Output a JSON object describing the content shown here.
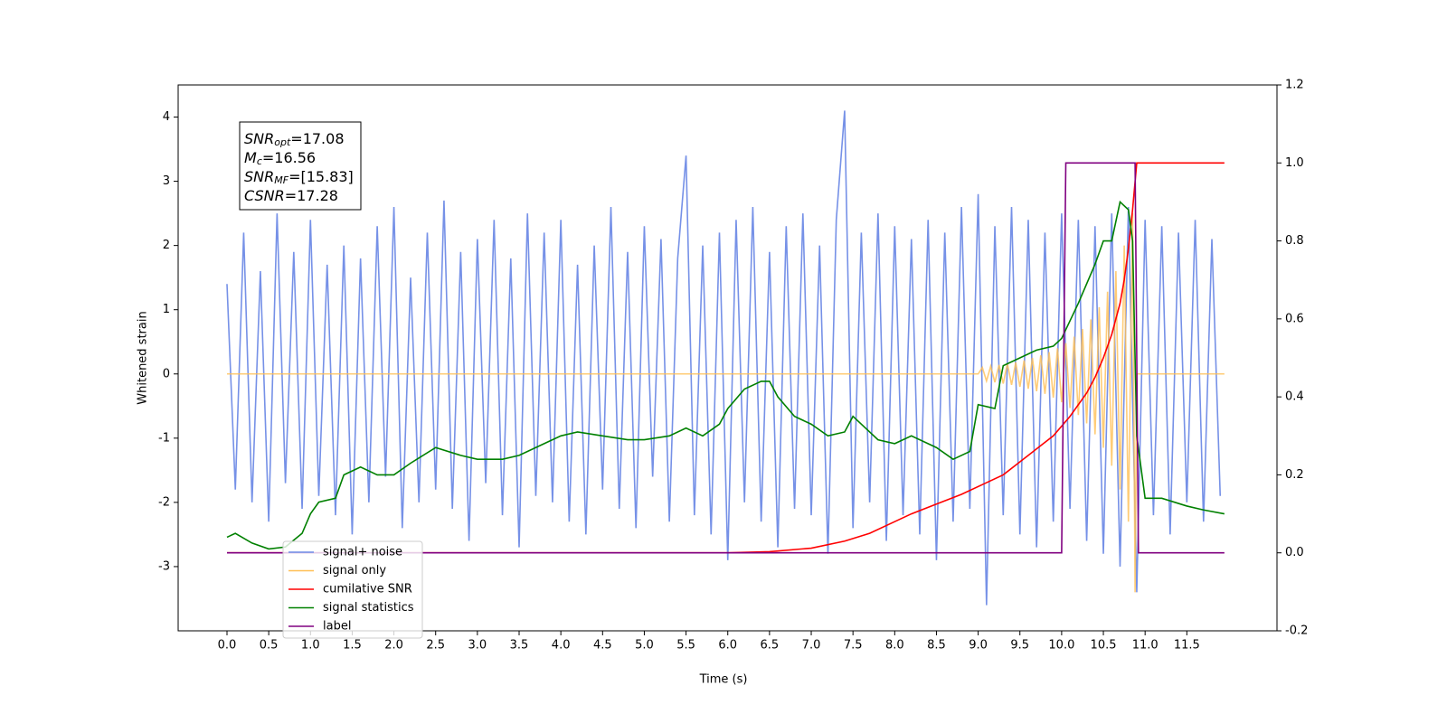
{
  "chart_data": {
    "type": "line",
    "x_label": "Time (s)",
    "y_label": "Whitened strain",
    "annotation": [
      {
        "base": "SNR",
        "sub": "opt",
        "rest": "=17.08"
      },
      {
        "base": "M",
        "sub": "c",
        "rest": "=16.56"
      },
      {
        "base": "SNR",
        "sub": "MF",
        "rest": "=[15.83]"
      },
      {
        "base": "CSNR",
        "sub": null,
        "rest": "=17.28"
      }
    ],
    "xlim": [
      -0.585,
      12.58
    ],
    "xticks": [
      {
        "value": 0,
        "label": "0.0"
      },
      0.5,
      {
        "value": 1,
        "label": "1.0"
      },
      1.5,
      {
        "value": 2,
        "label": "2.0"
      },
      2.5,
      {
        "value": 3,
        "label": "3.0"
      },
      3.5,
      {
        "value": 4,
        "label": "4.0"
      },
      4.5,
      {
        "value": 5,
        "label": "5.0"
      },
      5.5,
      {
        "value": 6,
        "label": "6.0"
      },
      6.5,
      {
        "value": 7,
        "label": "7.0"
      },
      7.5,
      {
        "value": 8,
        "label": "8.0"
      },
      8.5,
      {
        "value": 9,
        "label": "9.0"
      },
      9.5,
      {
        "value": 10,
        "label": "10.0"
      },
      10.5,
      {
        "value": 11,
        "label": "11.0"
      },
      11.5
    ],
    "ylim": [
      -4.0,
      4.5
    ],
    "yticks": [
      -3,
      -2,
      -1,
      0,
      1,
      2,
      3,
      4
    ],
    "y2lim": [
      -0.2,
      1.2
    ],
    "y2ticks": [
      -0.2,
      {
        "value": 0,
        "label": "0.0"
      },
      0.2,
      0.4,
      0.6,
      0.8,
      {
        "value": 1,
        "label": "1.0"
      },
      1.2
    ],
    "legend": "lower left",
    "series": [
      {
        "name": "signal+ noise",
        "color": "#6f8be6",
        "x": [
          0,
          0.1,
          0.2,
          0.3,
          0.4,
          0.5,
          0.6,
          0.7,
          0.8,
          0.9,
          1,
          1.1,
          1.2,
          1.3,
          1.4,
          1.5,
          1.6,
          1.7,
          1.8,
          1.9,
          2,
          2.1,
          2.2,
          2.3,
          2.4,
          2.5,
          2.6,
          2.7,
          2.8,
          2.9,
          3,
          3.1,
          3.2,
          3.3,
          3.4,
          3.5,
          3.6,
          3.7,
          3.8,
          3.9,
          4,
          4.1,
          4.2,
          4.3,
          4.4,
          4.5,
          4.6,
          4.7,
          4.8,
          4.9,
          5,
          5.1,
          5.2,
          5.3,
          5.4,
          5.5,
          5.6,
          5.7,
          5.8,
          5.9,
          6,
          6.1,
          6.2,
          6.3,
          6.4,
          6.5,
          6.6,
          6.7,
          6.8,
          6.9,
          7,
          7.1,
          7.2,
          7.3,
          7.4,
          7.5,
          7.6,
          7.7,
          7.8,
          7.9,
          8,
          8.1,
          8.2,
          8.3,
          8.4,
          8.5,
          8.6,
          8.7,
          8.8,
          8.9,
          9,
          9.1,
          9.2,
          9.3,
          9.4,
          9.5,
          9.6,
          9.7,
          9.8,
          9.9,
          10,
          10.1,
          10.2,
          10.3,
          10.4,
          10.5,
          10.6,
          10.7,
          10.8,
          10.9,
          11,
          11.1,
          11.2,
          11.3,
          11.4,
          11.5,
          11.6,
          11.7,
          11.8,
          11.9
        ],
        "values": [
          1.4,
          -1.8,
          2.2,
          -2.0,
          1.6,
          -2.3,
          2.5,
          -1.7,
          1.9,
          -2.1,
          2.4,
          -1.9,
          1.7,
          -2.2,
          2.0,
          -2.5,
          1.8,
          -2.0,
          2.3,
          -1.6,
          2.6,
          -2.4,
          1.5,
          -2.0,
          2.2,
          -1.8,
          2.7,
          -2.1,
          1.9,
          -2.6,
          2.1,
          -1.7,
          2.4,
          -2.2,
          1.8,
          -2.7,
          2.5,
          -1.9,
          2.2,
          -2.0,
          2.4,
          -2.3,
          1.7,
          -2.5,
          2.0,
          -1.8,
          2.6,
          -2.1,
          1.9,
          -2.4,
          2.3,
          -1.6,
          2.1,
          -2.3,
          1.8,
          3.4,
          -2.2,
          2.0,
          -2.5,
          2.2,
          -2.9,
          2.4,
          -2.0,
          2.6,
          -2.3,
          1.9,
          -2.7,
          2.3,
          -2.1,
          2.5,
          -2.2,
          2.0,
          -2.8,
          2.4,
          4.1,
          -2.4,
          2.2,
          -2.0,
          2.5,
          -2.6,
          2.3,
          -2.2,
          2.1,
          -2.5,
          2.4,
          -2.9,
          2.2,
          -2.3,
          2.6,
          -2.1,
          2.8,
          -3.6,
          2.3,
          -2.2,
          2.6,
          -2.5,
          2.4,
          -2.7,
          2.2,
          -2.3,
          2.5,
          -2.1,
          2.4,
          -2.6,
          2.3,
          -2.8,
          2.5,
          -3.0,
          2.6,
          -3.4,
          2.4,
          -2.2,
          2.3,
          -2.5,
          2.2,
          -2.0,
          2.4,
          -2.3,
          2.1,
          -1.9
        ]
      },
      {
        "name": "signal only",
        "color": "#ffbf55",
        "x": [
          0,
          9.0,
          9.05,
          9.1,
          9.15,
          9.2,
          9.25,
          9.3,
          9.35,
          9.4,
          9.45,
          9.5,
          9.55,
          9.6,
          9.65,
          9.7,
          9.75,
          9.8,
          9.85,
          9.9,
          9.95,
          10.0,
          10.05,
          10.1,
          10.15,
          10.2,
          10.25,
          10.3,
          10.35,
          10.4,
          10.45,
          10.5,
          10.55,
          10.6,
          10.65,
          10.7,
          10.75,
          10.8,
          10.85,
          10.88,
          10.9,
          11.95
        ],
        "values": [
          0,
          0,
          0.1,
          -0.11,
          0.12,
          -0.13,
          0.14,
          -0.15,
          0.16,
          -0.17,
          0.18,
          -0.2,
          0.21,
          -0.23,
          0.25,
          -0.27,
          0.29,
          -0.31,
          0.34,
          -0.37,
          0.4,
          -0.44,
          0.48,
          -0.53,
          0.58,
          -0.64,
          0.7,
          -0.77,
          0.85,
          -0.94,
          1.04,
          -1.15,
          1.28,
          -1.43,
          1.6,
          -1.8,
          2.0,
          -2.3,
          2.5,
          -3.4,
          0,
          0
        ]
      },
      {
        "name": "cumilative SNR",
        "color": "#ff0000",
        "axis": "y2",
        "x": [
          0,
          6.0,
          6.5,
          7.0,
          7.4,
          7.7,
          8.0,
          8.2,
          8.5,
          8.8,
          9.1,
          9.3,
          9.6,
          9.9,
          10.1,
          10.3,
          10.4,
          10.5,
          10.6,
          10.7,
          10.75,
          10.8,
          10.85,
          10.9,
          11.95
        ],
        "values": [
          0,
          0,
          0.003,
          0.012,
          0.03,
          0.05,
          0.08,
          0.1,
          0.125,
          0.15,
          0.18,
          0.2,
          0.25,
          0.3,
          0.35,
          0.41,
          0.45,
          0.5,
          0.56,
          0.64,
          0.7,
          0.78,
          0.88,
          1.0,
          1.0
        ]
      },
      {
        "name": "signal statistics",
        "color": "#008000",
        "axis": "y2",
        "x": [
          0,
          0.1,
          0.3,
          0.5,
          0.7,
          0.9,
          1.0,
          1.1,
          1.3,
          1.4,
          1.6,
          1.8,
          2.0,
          2.2,
          2.5,
          2.8,
          3.0,
          3.3,
          3.5,
          3.8,
          4.0,
          4.2,
          4.5,
          4.8,
          5.0,
          5.3,
          5.5,
          5.7,
          5.9,
          6.0,
          6.2,
          6.4,
          6.5,
          6.6,
          6.8,
          7.0,
          7.2,
          7.4,
          7.5,
          7.6,
          7.8,
          8.0,
          8.2,
          8.5,
          8.7,
          8.9,
          9.0,
          9.2,
          9.3,
          9.5,
          9.7,
          9.9,
          10.0,
          10.2,
          10.4,
          10.5,
          10.6,
          10.7,
          10.8,
          10.85,
          10.9,
          11.0,
          11.2,
          11.5,
          11.7,
          11.95
        ],
        "values": [
          0.04,
          0.05,
          0.025,
          0.01,
          0.015,
          0.05,
          0.1,
          0.13,
          0.14,
          0.2,
          0.22,
          0.2,
          0.2,
          0.23,
          0.27,
          0.25,
          0.24,
          0.24,
          0.25,
          0.28,
          0.3,
          0.31,
          0.3,
          0.29,
          0.29,
          0.3,
          0.32,
          0.3,
          0.33,
          0.37,
          0.42,
          0.44,
          0.44,
          0.4,
          0.35,
          0.33,
          0.3,
          0.31,
          0.35,
          0.33,
          0.29,
          0.28,
          0.3,
          0.27,
          0.24,
          0.26,
          0.38,
          0.37,
          0.48,
          0.5,
          0.52,
          0.53,
          0.55,
          0.64,
          0.74,
          0.8,
          0.8,
          0.9,
          0.88,
          0.8,
          0.3,
          0.14,
          0.14,
          0.12,
          0.11,
          0.1
        ]
      },
      {
        "name": "label",
        "color": "#800080",
        "axis": "y2",
        "x": [
          0,
          10.0,
          10.05,
          10.88,
          10.92,
          11.95
        ],
        "values": [
          0,
          0,
          1,
          1,
          0,
          0
        ]
      }
    ]
  }
}
